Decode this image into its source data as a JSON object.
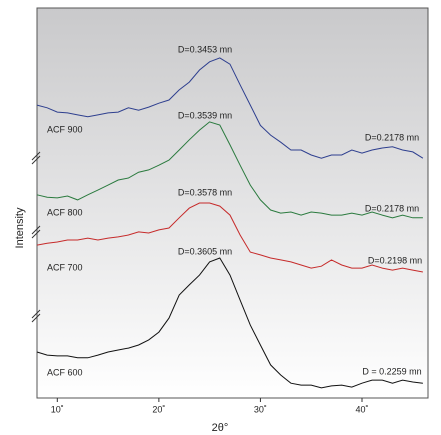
{
  "chart_data": {
    "type": "line",
    "x_label": "2θ°",
    "y_label": "Intensity",
    "x": [
      8,
      9,
      10,
      11,
      12,
      13,
      14,
      15,
      16,
      17,
      18,
      19,
      20,
      21,
      22,
      23,
      24,
      25,
      26,
      27,
      28,
      29,
      30,
      31,
      32,
      33,
      34,
      35,
      36,
      37,
      38,
      39,
      40,
      41,
      42,
      43,
      44,
      45,
      46
    ],
    "xlim": [
      8,
      46.5
    ],
    "xticks": [
      {
        "value": 10,
        "label": "10˚"
      },
      {
        "value": 20,
        "label": "20˚"
      },
      {
        "value": 30,
        "label": "30˚"
      },
      {
        "value": 40,
        "label": "40˚"
      }
    ],
    "ylim": [
      0,
      100
    ],
    "series": [
      {
        "name": "ACF 900",
        "color": "#2e3f8f",
        "annotations": [
          "D=0.3453 mn",
          "D=0.2178 mn"
        ],
        "values": [
          75.1,
          74.4,
          73.3,
          73.1,
          72.6,
          72.1,
          72.6,
          73.1,
          73.3,
          74.4,
          73.8,
          74.6,
          75.6,
          76.4,
          79.0,
          81.0,
          84.1,
          86.2,
          87.2,
          85.6,
          80.3,
          75.1,
          69.9,
          67.4,
          65.6,
          63.6,
          63.6,
          62.3,
          61.5,
          62.3,
          62.3,
          63.6,
          62.8,
          63.6,
          64.1,
          64.4,
          63.6,
          63.1,
          61.5
        ]
      },
      {
        "name": "ACF 800",
        "color": "#2a7a3e",
        "annotations": [
          "D=0.3539 mn",
          "D=0.2178 mn"
        ],
        "values": [
          52.1,
          51.5,
          51.3,
          51.8,
          50.8,
          52.1,
          53.3,
          54.6,
          55.9,
          56.4,
          57.9,
          58.5,
          59.7,
          61.0,
          63.6,
          66.2,
          68.7,
          70.8,
          70.0,
          64.9,
          59.7,
          54.6,
          50.8,
          48.2,
          47.4,
          47.7,
          46.9,
          47.7,
          47.4,
          46.9,
          46.9,
          47.4,
          46.9,
          47.7,
          46.9,
          46.2,
          46.9,
          46.2,
          46.2
        ]
      },
      {
        "name": "ACF 700",
        "color": "#c62a2a",
        "annotations": [
          "D=0.3578 mn",
          "D=0.2198 mn"
        ],
        "values": [
          39.2,
          39.7,
          40.0,
          40.5,
          40.5,
          41.0,
          40.5,
          41.0,
          41.3,
          41.8,
          42.6,
          42.3,
          43.1,
          43.6,
          46.2,
          48.7,
          50.0,
          50.0,
          49.2,
          46.9,
          41.8,
          37.4,
          36.7,
          35.9,
          35.4,
          34.9,
          34.1,
          33.3,
          33.8,
          35.4,
          34.1,
          33.3,
          33.3,
          34.1,
          33.3,
          32.8,
          33.3,
          32.8,
          32.3
        ]
      },
      {
        "name": "ACF 600",
        "color": "#111111",
        "annotations": [
          "D=0.3605 mn",
          "D = 0.2259 mn"
        ],
        "values": [
          11.8,
          11.0,
          10.8,
          10.8,
          10.3,
          10.3,
          11.0,
          11.8,
          12.3,
          12.8,
          13.6,
          14.9,
          16.9,
          20.5,
          26.4,
          29.0,
          31.5,
          34.9,
          35.9,
          31.5,
          25.1,
          18.7,
          13.6,
          8.5,
          5.9,
          3.8,
          3.3,
          3.3,
          2.6,
          3.1,
          3.3,
          2.8,
          3.8,
          4.6,
          4.6,
          3.8,
          4.6,
          4.1,
          3.8
        ]
      }
    ]
  }
}
